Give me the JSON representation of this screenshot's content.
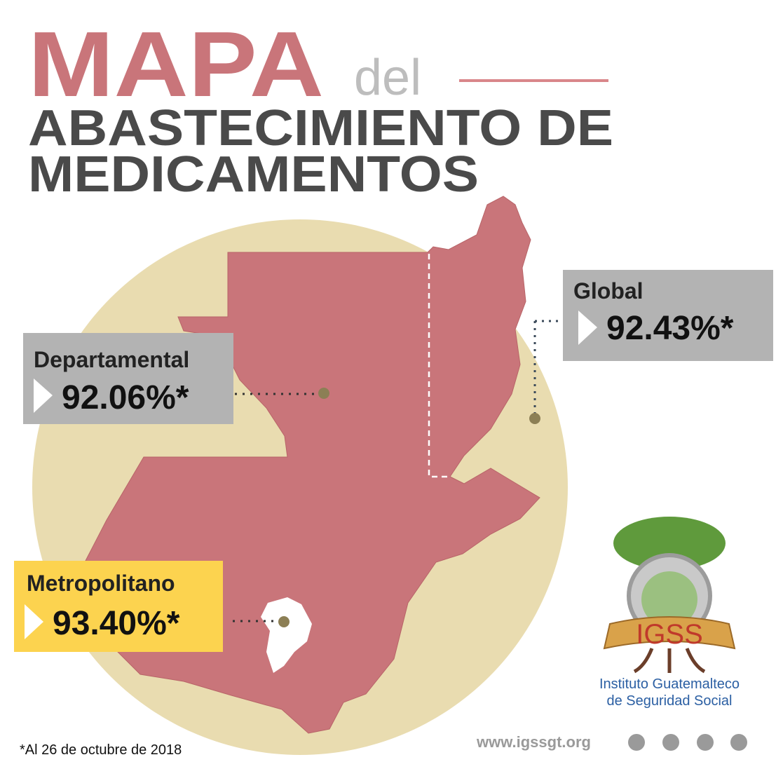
{
  "header": {
    "title_main": "MAPA",
    "title_connector": "del",
    "title_line1": "ABASTECIMIENTO DE",
    "title_line2": "MEDICAMENTOS"
  },
  "indicators": [
    {
      "label": "Global",
      "value": "92.43%*"
    },
    {
      "label": "Departamental",
      "value": "92.06%*"
    },
    {
      "label": "Metropolitano",
      "value": "93.40%*"
    }
  ],
  "logo": {
    "acronym": "IGSS",
    "name_line1": "Instituto Guatemalteco",
    "name_line2": "de Seguridad Social"
  },
  "footer": {
    "note": "*Al 26 de octubre de 2018",
    "website": "www.igssgt.org"
  }
}
